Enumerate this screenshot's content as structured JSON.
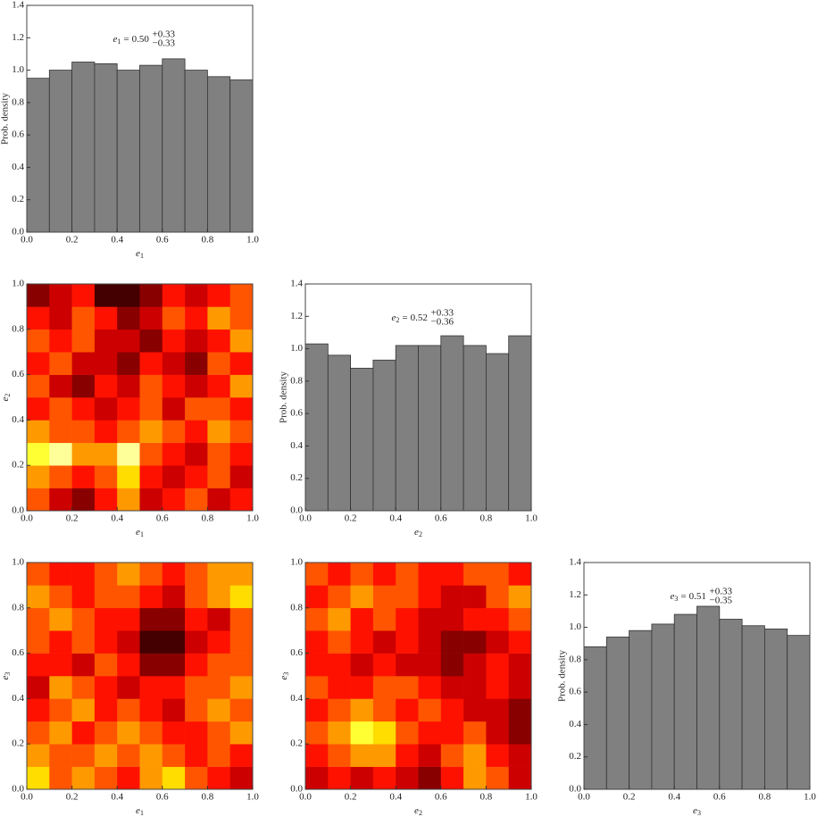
{
  "chart_data": [
    {
      "type": "histogram",
      "bins": [
        0,
        0.1,
        0.2,
        0.3,
        0.4,
        0.5,
        0.6,
        0.7,
        0.8,
        0.9,
        1.0
      ],
      "values": [
        0.95,
        1.0,
        1.05,
        1.04,
        1.0,
        1.03,
        1.07,
        1.0,
        0.96,
        0.94
      ],
      "color": "#808080",
      "xlabel": {
        "variable": "e",
        "index": "1"
      },
      "ylabel": "Prob. density",
      "annotation": {
        "variable": "e",
        "index": "1",
        "relation": "=",
        "value": "0.50",
        "upper": "+0.33",
        "lower": "−0.33"
      },
      "xlim": [
        0,
        1
      ],
      "ylim": [
        0,
        1.4
      ],
      "xticks": [
        {
          "value": 0,
          "label": "0.0"
        },
        0.2,
        0.4,
        0.6,
        0.8,
        {
          "value": 1,
          "label": "1.0"
        }
      ],
      "yticks": [
        {
          "value": 0,
          "label": "0.0"
        },
        0.2,
        0.4,
        0.6,
        0.8,
        {
          "value": 1,
          "label": "1.0"
        },
        1.2,
        1.4
      ]
    },
    {
      "type": "heatmap",
      "colormap": "hot",
      "xlabel": {
        "variable": "e",
        "index": "1"
      },
      "ylabel": {
        "variable": "e",
        "index": "2"
      },
      "xlim": [
        0,
        1
      ],
      "ylim": [
        0,
        1
      ],
      "xticks": [
        {
          "value": 0,
          "label": "0.0"
        },
        0.2,
        0.4,
        0.6,
        0.8,
        {
          "value": 1,
          "label": "1.0"
        }
      ],
      "yticks": [
        {
          "value": 0,
          "label": "0.0"
        },
        0.2,
        0.4,
        0.6,
        0.8,
        {
          "value": 1,
          "label": "1.0"
        }
      ],
      "z": [
        [
          0.5,
          0.3,
          0.2,
          0.4,
          0.6,
          0.3,
          0.4,
          0.5,
          0.3,
          0.4
        ],
        [
          0.6,
          0.5,
          0.4,
          0.5,
          0.7,
          0.4,
          0.3,
          0.4,
          0.5,
          0.3
        ],
        [
          0.8,
          0.9,
          0.6,
          0.6,
          0.9,
          0.5,
          0.4,
          0.3,
          0.5,
          0.4
        ],
        [
          0.6,
          0.5,
          0.5,
          0.4,
          0.5,
          0.6,
          0.5,
          0.4,
          0.6,
          0.5
        ],
        [
          0.4,
          0.5,
          0.4,
          0.3,
          0.4,
          0.5,
          0.3,
          0.5,
          0.5,
          0.4
        ],
        [
          0.5,
          0.3,
          0.2,
          0.4,
          0.3,
          0.5,
          0.4,
          0.3,
          0.4,
          0.6
        ],
        [
          0.4,
          0.5,
          0.3,
          0.3,
          0.2,
          0.4,
          0.3,
          0.2,
          0.5,
          0.4
        ],
        [
          0.5,
          0.4,
          0.5,
          0.3,
          0.3,
          0.2,
          0.4,
          0.3,
          0.4,
          0.6
        ],
        [
          0.4,
          0.3,
          0.5,
          0.4,
          0.2,
          0.3,
          0.5,
          0.4,
          0.6,
          0.5
        ],
        [
          0.2,
          0.3,
          0.4,
          0.1,
          0.1,
          0.2,
          0.4,
          0.3,
          0.4,
          0.5
        ]
      ]
    },
    {
      "type": "histogram",
      "bins": [
        0,
        0.1,
        0.2,
        0.3,
        0.4,
        0.5,
        0.6,
        0.7,
        0.8,
        0.9,
        1.0
      ],
      "values": [
        1.03,
        0.96,
        0.88,
        0.93,
        1.02,
        1.02,
        1.08,
        1.02,
        0.97,
        1.08
      ],
      "color": "#808080",
      "xlabel": {
        "variable": "e",
        "index": "2"
      },
      "ylabel": "Prob. density",
      "annotation": {
        "variable": "e",
        "index": "2",
        "relation": "=",
        "value": "0.52",
        "upper": "+0.33",
        "lower": "−0.36"
      },
      "xlim": [
        0,
        1
      ],
      "ylim": [
        0,
        1.4
      ],
      "xticks": [
        {
          "value": 0,
          "label": "0.0"
        },
        0.2,
        0.4,
        0.6,
        0.8,
        {
          "value": 1,
          "label": "1.0"
        }
      ],
      "yticks": [
        {
          "value": 0,
          "label": "0.0"
        },
        0.2,
        0.4,
        0.6,
        0.8,
        {
          "value": 1,
          "label": "1.0"
        },
        1.2,
        1.4
      ]
    },
    {
      "type": "heatmap",
      "colormap": "hot",
      "xlabel": {
        "variable": "e",
        "index": "1"
      },
      "ylabel": {
        "variable": "e",
        "index": "3"
      },
      "xlim": [
        0,
        1
      ],
      "ylim": [
        0,
        1
      ],
      "xticks": [
        {
          "value": 0,
          "label": "0.0"
        },
        0.2,
        0.4,
        0.6,
        0.8,
        {
          "value": 1,
          "label": "1.0"
        }
      ],
      "yticks": [
        {
          "value": 0,
          "label": "0.0"
        },
        0.2,
        0.4,
        0.6,
        0.8,
        {
          "value": 1,
          "label": "1.0"
        }
      ],
      "z": [
        [
          0.7,
          0.5,
          0.6,
          0.5,
          0.4,
          0.6,
          0.7,
          0.5,
          0.4,
          0.3
        ],
        [
          0.6,
          0.5,
          0.5,
          0.6,
          0.5,
          0.6,
          0.5,
          0.4,
          0.5,
          0.4
        ],
        [
          0.5,
          0.6,
          0.4,
          0.5,
          0.6,
          0.5,
          0.4,
          0.4,
          0.5,
          0.6
        ],
        [
          0.4,
          0.5,
          0.6,
          0.4,
          0.5,
          0.4,
          0.3,
          0.5,
          0.6,
          0.5
        ],
        [
          0.3,
          0.6,
          0.5,
          0.4,
          0.3,
          0.4,
          0.4,
          0.5,
          0.5,
          0.6
        ],
        [
          0.4,
          0.4,
          0.3,
          0.5,
          0.4,
          0.2,
          0.2,
          0.4,
          0.5,
          0.5
        ],
        [
          0.5,
          0.4,
          0.5,
          0.4,
          0.3,
          0.1,
          0.1,
          0.3,
          0.4,
          0.5
        ],
        [
          0.5,
          0.6,
          0.5,
          0.4,
          0.4,
          0.2,
          0.2,
          0.4,
          0.3,
          0.5
        ],
        [
          0.6,
          0.5,
          0.4,
          0.5,
          0.5,
          0.4,
          0.3,
          0.5,
          0.6,
          0.7
        ],
        [
          0.5,
          0.4,
          0.4,
          0.5,
          0.6,
          0.5,
          0.4,
          0.5,
          0.6,
          0.6
        ]
      ]
    },
    {
      "type": "heatmap",
      "colormap": "hot",
      "xlabel": {
        "variable": "e",
        "index": "2"
      },
      "ylabel": {
        "variable": "e",
        "index": "3"
      },
      "xlim": [
        0,
        1
      ],
      "ylim": [
        0,
        1
      ],
      "xticks": [
        {
          "value": 0,
          "label": "0.0"
        },
        0.2,
        0.4,
        0.6,
        0.8,
        {
          "value": 1,
          "label": "1.0"
        }
      ],
      "yticks": [
        {
          "value": 0,
          "label": "0.0"
        },
        0.2,
        0.4,
        0.6,
        0.8,
        {
          "value": 1,
          "label": "1.0"
        }
      ],
      "z": [
        [
          0.3,
          0.4,
          0.3,
          0.4,
          0.3,
          0.2,
          0.4,
          0.6,
          0.5,
          0.3
        ],
        [
          0.4,
          0.5,
          0.6,
          0.6,
          0.4,
          0.3,
          0.5,
          0.6,
          0.4,
          0.3
        ],
        [
          0.5,
          0.6,
          0.8,
          0.7,
          0.5,
          0.4,
          0.4,
          0.5,
          0.3,
          0.2
        ],
        [
          0.4,
          0.5,
          0.6,
          0.5,
          0.4,
          0.5,
          0.4,
          0.3,
          0.3,
          0.2
        ],
        [
          0.5,
          0.4,
          0.4,
          0.5,
          0.5,
          0.4,
          0.3,
          0.3,
          0.4,
          0.3
        ],
        [
          0.4,
          0.4,
          0.3,
          0.4,
          0.3,
          0.3,
          0.2,
          0.3,
          0.4,
          0.3
        ],
        [
          0.4,
          0.5,
          0.4,
          0.3,
          0.4,
          0.3,
          0.2,
          0.2,
          0.3,
          0.4
        ],
        [
          0.5,
          0.6,
          0.4,
          0.5,
          0.4,
          0.3,
          0.3,
          0.4,
          0.4,
          0.5
        ],
        [
          0.4,
          0.5,
          0.6,
          0.5,
          0.5,
          0.4,
          0.3,
          0.3,
          0.5,
          0.6
        ],
        [
          0.5,
          0.4,
          0.5,
          0.4,
          0.5,
          0.4,
          0.4,
          0.5,
          0.5,
          0.4
        ]
      ]
    },
    {
      "type": "histogram",
      "bins": [
        0,
        0.1,
        0.2,
        0.3,
        0.4,
        0.5,
        0.6,
        0.7,
        0.8,
        0.9,
        1.0
      ],
      "values": [
        0.88,
        0.94,
        0.98,
        1.02,
        1.08,
        1.13,
        1.05,
        1.01,
        0.99,
        0.95
      ],
      "color": "#808080",
      "xlabel": {
        "variable": "e",
        "index": "3"
      },
      "ylabel": "Prob. density",
      "annotation": {
        "variable": "e",
        "index": "3",
        "relation": "=",
        "value": "0.51",
        "upper": "+0.33",
        "lower": "−0.35"
      },
      "xlim": [
        0,
        1
      ],
      "ylim": [
        0,
        1.4
      ],
      "xticks": [
        {
          "value": 0,
          "label": "0.0"
        },
        0.2,
        0.4,
        0.6,
        0.8,
        {
          "value": 1,
          "label": "1.0"
        }
      ],
      "yticks": [
        {
          "value": 0,
          "label": "0.0"
        },
        0.2,
        0.4,
        0.6,
        0.8,
        {
          "value": 1,
          "label": "1.0"
        },
        1.2,
        1.4
      ]
    }
  ]
}
